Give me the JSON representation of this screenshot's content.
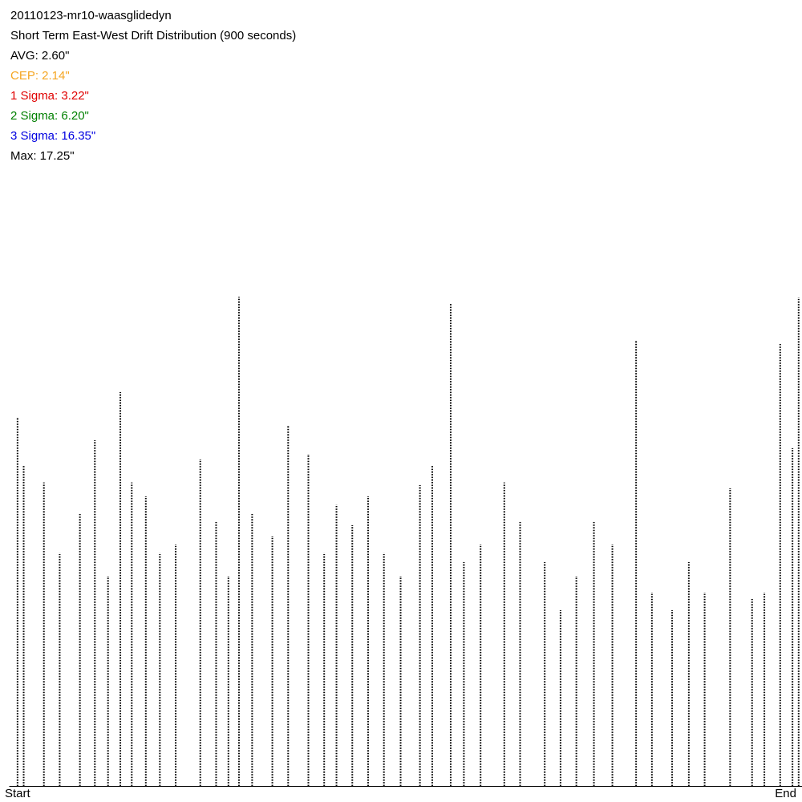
{
  "chart_data": {
    "type": "spike",
    "title": "20110123-mr10-waasglidedyn",
    "subtitle": "Short Term East-West Drift Distribution (900 seconds)",
    "stats": [
      {
        "text": "AVG: 2.60\"",
        "color": "#000000"
      },
      {
        "text": "CEP: 2.14\"",
        "color": "#f5a623"
      },
      {
        "text": "1 Sigma: 3.22\"",
        "color": "#e00000"
      },
      {
        "text": "2 Sigma: 6.20\"",
        "color": "#008000"
      },
      {
        "text": "3 Sigma: 16.35\"",
        "color": "#0000e0"
      },
      {
        "text": "Max: 17.25\"",
        "color": "#000000"
      }
    ],
    "xlim": [
      0,
      900
    ],
    "xticks": [
      {
        "value": 0,
        "label": "Start"
      },
      {
        "value": 900,
        "label": "End"
      }
    ],
    "ylim": [
      0,
      27.7
    ],
    "color": "#000000",
    "x": [
      9,
      16,
      39,
      57,
      80,
      97,
      112,
      126,
      139,
      155,
      171,
      189,
      217,
      235,
      249,
      261,
      276,
      299,
      317,
      340,
      358,
      372,
      390,
      408,
      426,
      445,
      467,
      481,
      502,
      517,
      536,
      563,
      581,
      609,
      627,
      645,
      665,
      686,
      713,
      731,
      754,
      773,
      791,
      820,
      845,
      859,
      877,
      891,
      898
    ],
    "values": [
      13.0,
      11.3,
      10.7,
      8.2,
      9.6,
      12.2,
      7.4,
      13.9,
      10.7,
      10.2,
      8.2,
      8.5,
      11.5,
      9.3,
      7.4,
      17.25,
      9.6,
      8.8,
      12.7,
      11.7,
      8.2,
      9.9,
      9.2,
      10.2,
      8.2,
      7.4,
      10.6,
      11.3,
      17.0,
      7.9,
      8.5,
      10.7,
      9.3,
      7.9,
      6.2,
      7.4,
      9.3,
      8.5,
      15.7,
      6.8,
      6.2,
      7.9,
      6.8,
      10.5,
      6.6,
      6.8,
      15.6,
      11.9,
      17.2
    ]
  }
}
